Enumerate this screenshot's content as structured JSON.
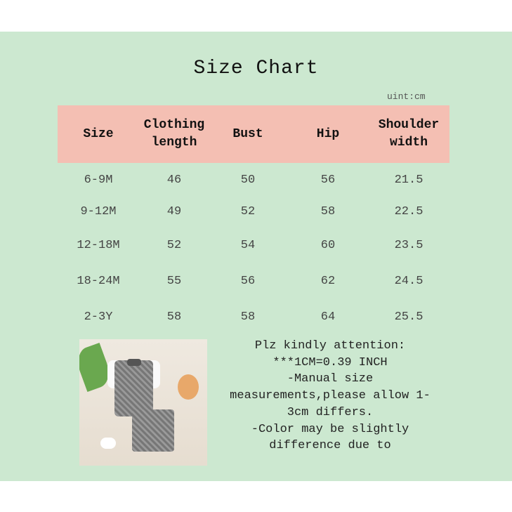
{
  "title": "Size Chart",
  "unit": "uint:cm",
  "colors": {
    "background": "#cce8d0",
    "header": "#f4bfb3"
  },
  "headers": [
    "Size",
    "Clothing length",
    "Bust",
    "Hip",
    "Shoulder width"
  ],
  "rows": [
    [
      "6-9M",
      "46",
      "50",
      "56",
      "21.5"
    ],
    [
      "9-12M",
      "49",
      "52",
      "58",
      "22.5"
    ],
    [
      "12-18M",
      "52",
      "54",
      "60",
      "23.5"
    ],
    [
      "18-24M",
      "55",
      "56",
      "62",
      "24.5"
    ],
    [
      "2-3Y",
      "58",
      "58",
      "64",
      "25.5"
    ]
  ],
  "note": [
    "Plz kindly attention:",
    "***1CM=0.39 INCH",
    "-Manual size",
    "measurements,please allow 1-",
    "3cm differs.",
    "-Color may be slightly",
    "difference due to"
  ]
}
